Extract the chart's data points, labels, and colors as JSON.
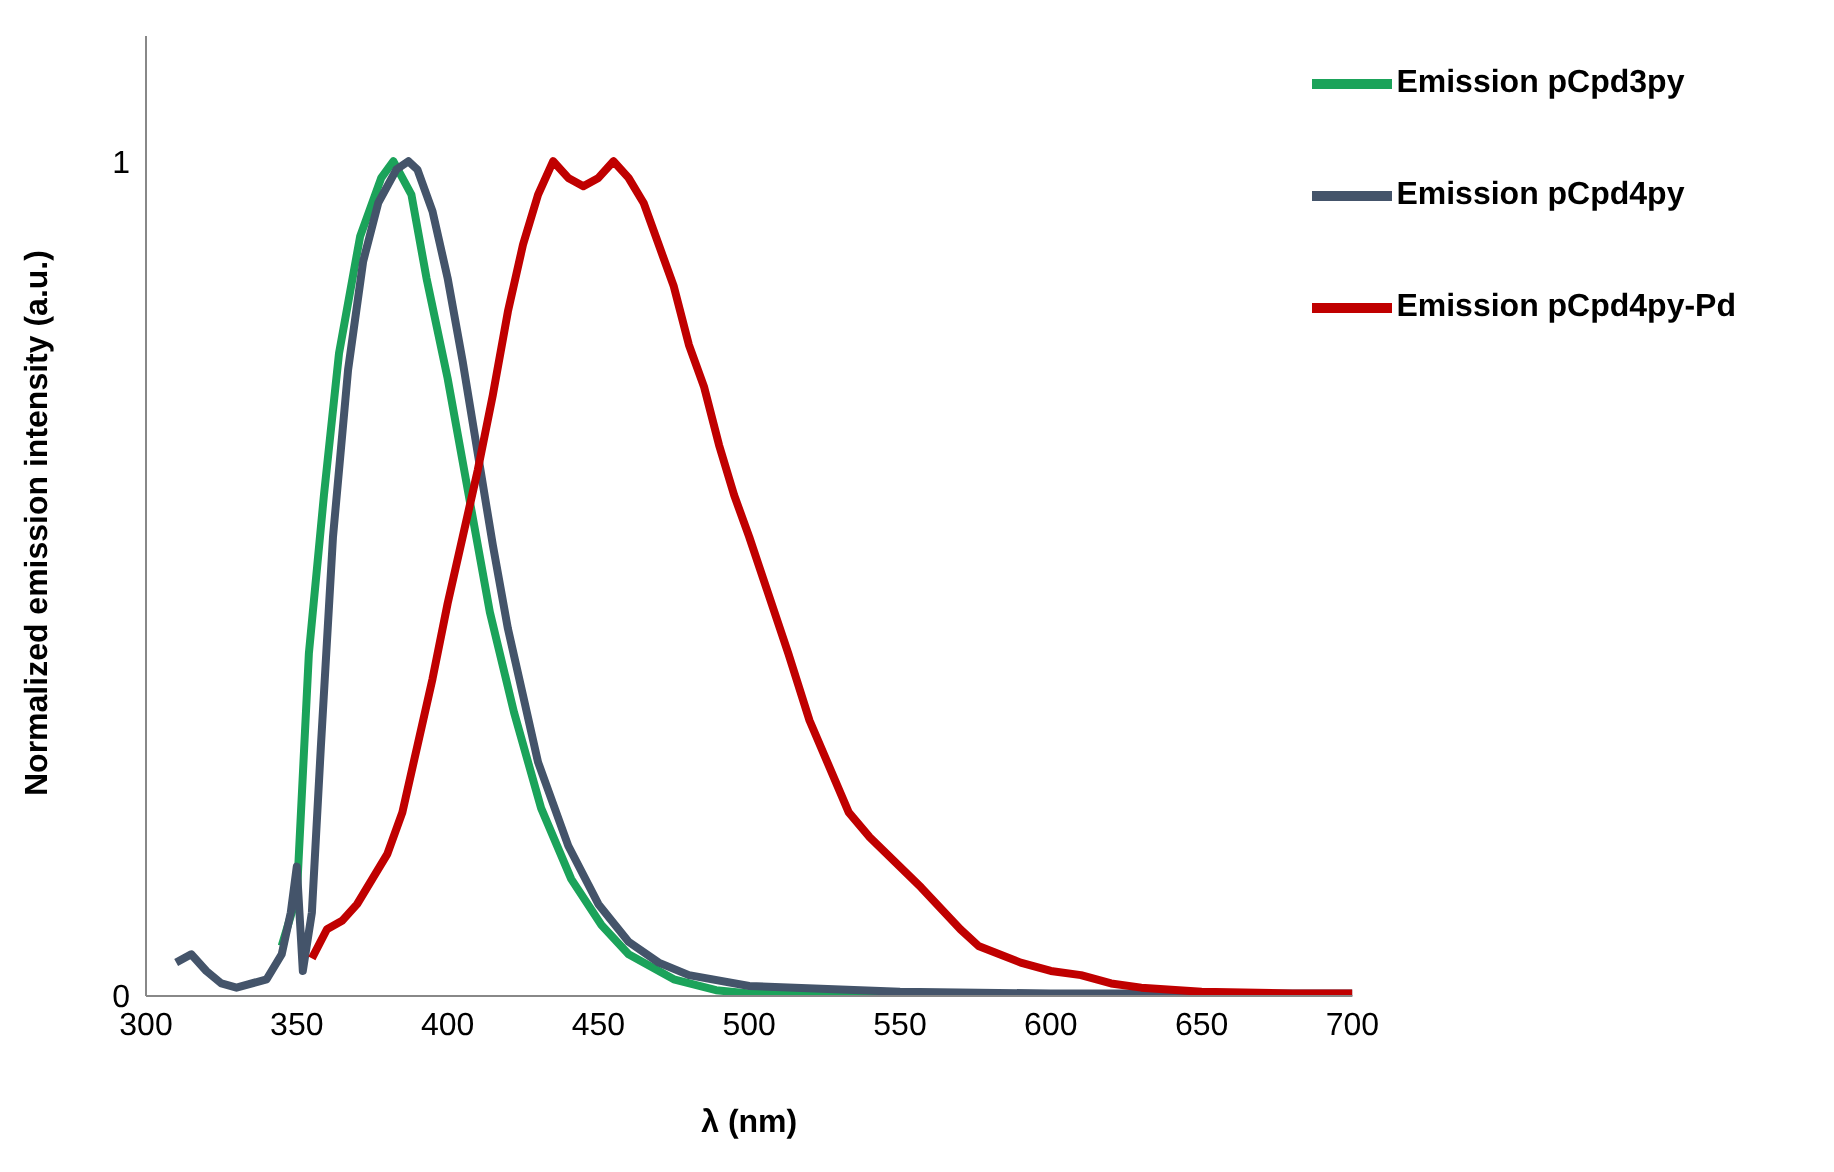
{
  "chart_data": {
    "type": "line",
    "xlabel": "λ (nm)",
    "ylabel": "Normalized emission intensity (a.u.)",
    "xlim": [
      300,
      700
    ],
    "xticks": [
      300,
      350,
      400,
      450,
      500,
      550,
      600,
      650,
      700
    ],
    "ylim": [
      0,
      1.15
    ],
    "yticks": [
      0,
      1
    ],
    "grid": false,
    "legend": "top right",
    "marker": "none",
    "line_style": "solid",
    "series": [
      {
        "name": "Emission pCpd3py",
        "color": "#1ba35a",
        "x": [
          345,
          350,
          354,
          359,
          364,
          371,
          378,
          382,
          388,
          393,
          400,
          407,
          414,
          422,
          431,
          441,
          451,
          460,
          475,
          489,
          500,
          550,
          600
        ],
        "values": [
          0.06,
          0.12,
          0.41,
          0.6,
          0.77,
          0.91,
          0.98,
          1.0,
          0.96,
          0.86,
          0.74,
          0.6,
          0.46,
          0.34,
          0.225,
          0.14,
          0.085,
          0.05,
          0.02,
          0.007,
          0.003,
          0.001,
          0
        ]
      },
      {
        "name": "Emission pCpd4py",
        "color": "#44546a",
        "x": [
          310,
          315,
          320,
          325,
          330,
          340,
          345,
          348,
          350,
          352,
          355,
          358,
          362,
          367,
          372,
          377,
          383,
          387,
          390,
          395,
          400,
          405,
          410,
          415,
          420,
          425,
          430,
          440,
          450,
          460,
          470,
          480,
          500,
          550,
          600,
          700
        ],
        "values": [
          0.04,
          0.05,
          0.03,
          0.015,
          0.01,
          0.02,
          0.05,
          0.1,
          0.155,
          0.03,
          0.1,
          0.3,
          0.55,
          0.75,
          0.88,
          0.95,
          0.99,
          1.0,
          0.99,
          0.94,
          0.86,
          0.76,
          0.65,
          0.54,
          0.44,
          0.36,
          0.28,
          0.18,
          0.11,
          0.065,
          0.04,
          0.025,
          0.012,
          0.005,
          0.003,
          0.003
        ]
      },
      {
        "name": "Emission pCpd4py-Pd",
        "color": "#c00000",
        "x": [
          355,
          360,
          365,
          370,
          375,
          380,
          385,
          390,
          395,
          400,
          405,
          410,
          415,
          420,
          425,
          430,
          435,
          440,
          445,
          450,
          455,
          460,
          465,
          470,
          475,
          480,
          485,
          490,
          495,
          500,
          513,
          520,
          533,
          540,
          557,
          570,
          576,
          590,
          600,
          610,
          620,
          630,
          650,
          680,
          700
        ],
        "values": [
          0.045,
          0.08,
          0.09,
          0.11,
          0.14,
          0.17,
          0.22,
          0.3,
          0.38,
          0.47,
          0.55,
          0.63,
          0.72,
          0.82,
          0.9,
          0.96,
          1.0,
          0.98,
          0.97,
          0.98,
          1.0,
          0.98,
          0.95,
          0.9,
          0.85,
          0.78,
          0.73,
          0.66,
          0.6,
          0.55,
          0.41,
          0.33,
          0.22,
          0.19,
          0.13,
          0.08,
          0.06,
          0.04,
          0.03,
          0.025,
          0.015,
          0.01,
          0.005,
          0.003,
          0.003
        ]
      }
    ]
  }
}
